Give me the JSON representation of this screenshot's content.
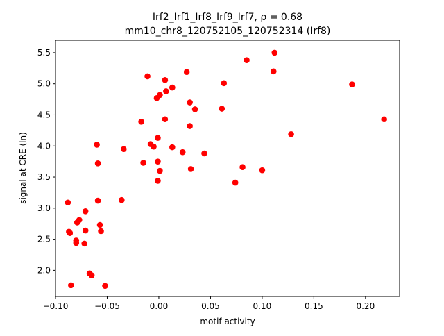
{
  "chart_data": {
    "type": "scatter",
    "title_line1": "Irf2_Irf1_Irf8_Irf9_Irf7, ρ = 0.68",
    "title_line2": "mm10_chr8_120752105_120752314 (Irf8)",
    "xlabel": "motif activity",
    "ylabel": "signal at CRE (ln)",
    "xlim": [
      -0.1,
      0.233
    ],
    "ylim": [
      1.58,
      5.7
    ],
    "xticks": [
      {
        "value": -0.1,
        "label": "−0.10"
      },
      {
        "value": -0.05,
        "label": "−0.05"
      },
      {
        "value": 0.0,
        "label": "0.00"
      },
      {
        "value": 0.05,
        "label": "0.05"
      },
      {
        "value": 0.1,
        "label": "0.10"
      },
      {
        "value": 0.15,
        "label": "0.15"
      },
      {
        "value": 0.2,
        "label": "0.20"
      }
    ],
    "yticks": [
      {
        "value": 2.0,
        "label": "2.0"
      },
      {
        "value": 2.5,
        "label": "2.5"
      },
      {
        "value": 3.0,
        "label": "3.0"
      },
      {
        "value": 3.5,
        "label": "3.5"
      },
      {
        "value": 4.0,
        "label": "4.0"
      },
      {
        "value": 4.5,
        "label": "4.5"
      },
      {
        "value": 5.0,
        "label": "5.0"
      },
      {
        "value": 5.5,
        "label": "5.5"
      }
    ],
    "grid": false,
    "marker_color": "#ff0000",
    "points": [
      [
        -0.088,
        3.09
      ],
      [
        -0.087,
        2.62
      ],
      [
        -0.086,
        2.6
      ],
      [
        -0.085,
        1.76
      ],
      [
        -0.08,
        2.48
      ],
      [
        -0.08,
        2.44
      ],
      [
        -0.079,
        2.77
      ],
      [
        -0.077,
        2.81
      ],
      [
        -0.072,
        2.43
      ],
      [
        -0.071,
        2.64
      ],
      [
        -0.071,
        2.95
      ],
      [
        -0.067,
        1.95
      ],
      [
        -0.065,
        1.92
      ],
      [
        -0.06,
        4.02
      ],
      [
        -0.059,
        3.12
      ],
      [
        -0.059,
        3.72
      ],
      [
        -0.057,
        2.73
      ],
      [
        -0.056,
        2.63
      ],
      [
        -0.052,
        1.75
      ],
      [
        -0.036,
        3.13
      ],
      [
        -0.034,
        3.95
      ],
      [
        -0.017,
        4.39
      ],
      [
        -0.015,
        3.73
      ],
      [
        -0.011,
        5.12
      ],
      [
        -0.008,
        4.03
      ],
      [
        -0.005,
        3.99
      ],
      [
        -0.002,
        4.77
      ],
      [
        -0.001,
        4.13
      ],
      [
        -0.001,
        3.75
      ],
      [
        -0.001,
        3.44
      ],
      [
        0.001,
        4.82
      ],
      [
        0.001,
        3.6
      ],
      [
        0.006,
        5.06
      ],
      [
        0.006,
        4.43
      ],
      [
        0.007,
        4.88
      ],
      [
        0.013,
        4.94
      ],
      [
        0.013,
        3.98
      ],
      [
        0.023,
        3.9
      ],
      [
        0.027,
        5.19
      ],
      [
        0.03,
        4.7
      ],
      [
        0.03,
        4.32
      ],
      [
        0.031,
        3.63
      ],
      [
        0.035,
        4.59
      ],
      [
        0.044,
        3.88
      ],
      [
        0.061,
        4.6
      ],
      [
        0.063,
        5.01
      ],
      [
        0.074,
        3.41
      ],
      [
        0.081,
        3.66
      ],
      [
        0.085,
        5.38
      ],
      [
        0.1,
        3.61
      ],
      [
        0.111,
        5.2
      ],
      [
        0.112,
        5.5
      ],
      [
        0.128,
        4.19
      ],
      [
        0.187,
        4.99
      ],
      [
        0.218,
        4.43
      ]
    ]
  }
}
